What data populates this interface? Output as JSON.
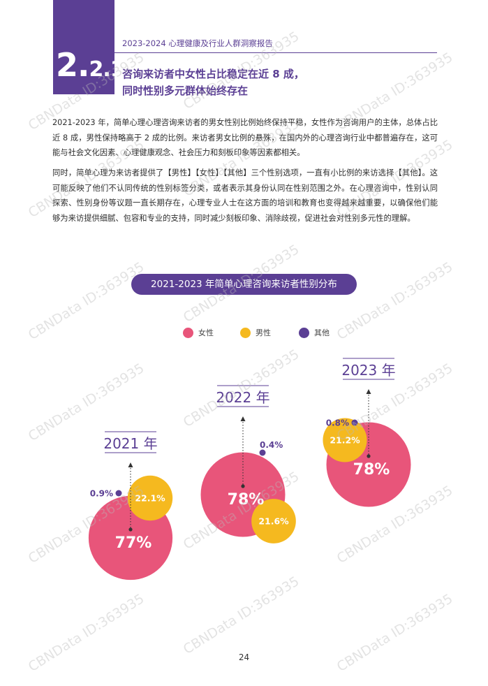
{
  "header": {
    "section_big": "2.",
    "section_small": "2.1",
    "report_title": "2023-2024 心理健康及行业人群洞察报告",
    "heading_line1": "咨询来访者中女性占比稳定在近 8 成，",
    "heading_line2": "同时性别多元群体始终存在"
  },
  "body": {
    "paragraph1": "2021-2023 年，简单心理心理咨询来访者的男女性别比例始终保持平稳，女性作为咨询用户的主体，总体占比近 8 成，男性保持略高于 2 成的比例。来访者男女比例的悬殊，在国内外的心理咨询行业中都普遍存在，这可能与社会文化因素、心理健康观念、社会压力和刻板印象等因素都相关。",
    "paragraph2": "同时，简单心理为来访者提供了【男性】【女性】【其他】三个性别选项，一直有小比例的来访选择【其他】。这可能反映了他们不认同传统的性别标签分类，或者表示其身份认同在性别范围之外。在心理咨询中，性别认同探索、性别身份等议题一直长期存在，心理专业人士在这方面的培训和教育也变得越来越重要，以确保他们能够为来访提供细腻、包容和专业的支持，同时减少刻板印象、消除歧视，促进社会对性别多元性的理解。"
  },
  "chart_data": {
    "type": "bubble",
    "title": "2021-2023 年简单心理咨询来访者性别分布",
    "legend": [
      {
        "label": "女性",
        "color": "#e8557a"
      },
      {
        "label": "男性",
        "color": "#f5b91f"
      },
      {
        "label": "其他",
        "color": "#5b3f94"
      }
    ],
    "legend_position": "top-center",
    "categories": [
      "2021 年",
      "2022 年",
      "2023 年"
    ],
    "series": [
      {
        "name": "女性",
        "values": [
          77,
          78,
          78
        ],
        "labels": [
          "77%",
          "78%",
          "78%"
        ]
      },
      {
        "name": "男性",
        "values": [
          22.1,
          21.6,
          21.2
        ],
        "labels": [
          "22.1%",
          "21.6%",
          "21.2%"
        ]
      },
      {
        "name": "其他",
        "values": [
          0.9,
          0.4,
          0.8
        ],
        "labels": [
          "0.9%",
          "0.4%",
          "0.8%"
        ]
      }
    ]
  },
  "watermark_text": "CBNData ID:363935",
  "page_number": "24"
}
